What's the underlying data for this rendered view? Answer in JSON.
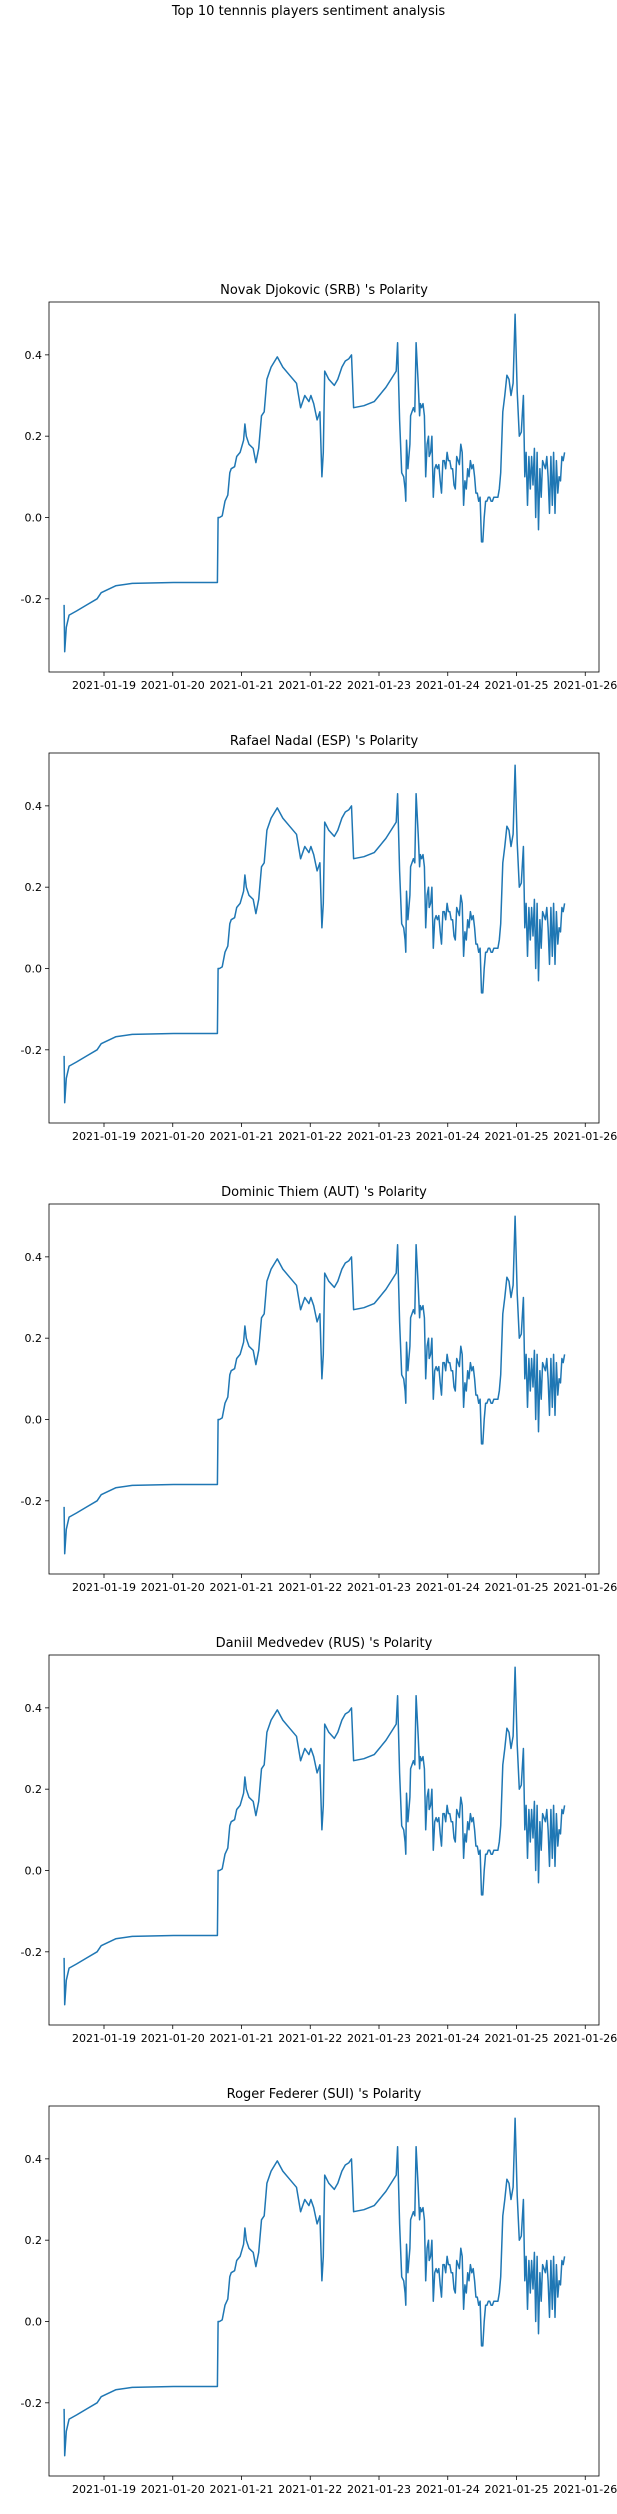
{
  "suptitle": "Top 10 tennnis players sentiment analysis",
  "chart_data": [
    {
      "type": "line",
      "title": "Novak Djokovic (SRB) 's Polarity",
      "xlim": [
        "2021-01-18 04:48",
        "2021-01-26 04:48"
      ],
      "ylim": [
        -0.38,
        0.53
      ],
      "x_tick_labels": [
        "2021-01-19",
        "2021-01-20",
        "2021-01-21",
        "2021-01-22",
        "2021-01-23",
        "2021-01-24",
        "2021-01-25",
        "2021-01-26"
      ],
      "y_tick_labels": [
        "-0.2",
        "0.0",
        "0.2",
        "0.4"
      ],
      "line_color": "#1f77b4",
      "series": [
        {
          "x": [],
          "y": []
        }
      ]
    },
    {
      "type": "line",
      "title": "Rafael Nadal (ESP) 's Polarity",
      "xlim": [
        "2021-01-18 04:48",
        "2021-01-26 04:48"
      ],
      "ylim": [
        -0.38,
        0.53
      ],
      "x_tick_labels": [
        "2021-01-19",
        "2021-01-20",
        "2021-01-21",
        "2021-01-22",
        "2021-01-23",
        "2021-01-24",
        "2021-01-25",
        "2021-01-26"
      ],
      "y_tick_labels": [
        "-0.2",
        "0.0",
        "0.2",
        "0.4"
      ],
      "line_color": "#1f77b4",
      "series": [
        {
          "x": [],
          "y": []
        }
      ]
    },
    {
      "type": "line",
      "title": "Dominic Thiem (AUT) 's Polarity",
      "xlim": [
        "2021-01-18 04:48",
        "2021-01-26 04:48"
      ],
      "ylim": [
        -0.38,
        0.53
      ],
      "x_tick_labels": [
        "2021-01-19",
        "2021-01-20",
        "2021-01-21",
        "2021-01-22",
        "2021-01-23",
        "2021-01-24",
        "2021-01-25",
        "2021-01-26"
      ],
      "y_tick_labels": [
        "-0.2",
        "0.0",
        "0.2",
        "0.4"
      ],
      "line_color": "#1f77b4",
      "series": [
        {
          "x": [],
          "y": []
        }
      ]
    },
    {
      "type": "line",
      "title": "Daniil Medvedev (RUS) 's Polarity",
      "xlim": [
        "2021-01-18 04:48",
        "2021-01-26 04:48"
      ],
      "ylim": [
        -0.38,
        0.53
      ],
      "x_tick_labels": [
        "2021-01-19",
        "2021-01-20",
        "2021-01-21",
        "2021-01-22",
        "2021-01-23",
        "2021-01-24",
        "2021-01-25",
        "2021-01-26"
      ],
      "y_tick_labels": [
        "-0.2",
        "0.0",
        "0.2",
        "0.4"
      ],
      "line_color": "#1f77b4",
      "series": [
        {
          "x": [],
          "y": []
        }
      ]
    },
    {
      "type": "line",
      "title": "Roger Federer (SUI) 's Polarity",
      "xlim": [
        "2021-01-18 04:48",
        "2021-01-26 04:48"
      ],
      "ylim": [
        -0.38,
        0.53
      ],
      "x_tick_labels": [
        "2021-01-19",
        "2021-01-20",
        "2021-01-21",
        "2021-01-22",
        "2021-01-23",
        "2021-01-24",
        "2021-01-25",
        "2021-01-26"
      ],
      "y_tick_labels": [
        "-0.2",
        "0.0",
        "0.2",
        "0.4"
      ],
      "line_color": "#1f77b4",
      "series": [
        {
          "x": [],
          "y": []
        }
      ]
    }
  ]
}
